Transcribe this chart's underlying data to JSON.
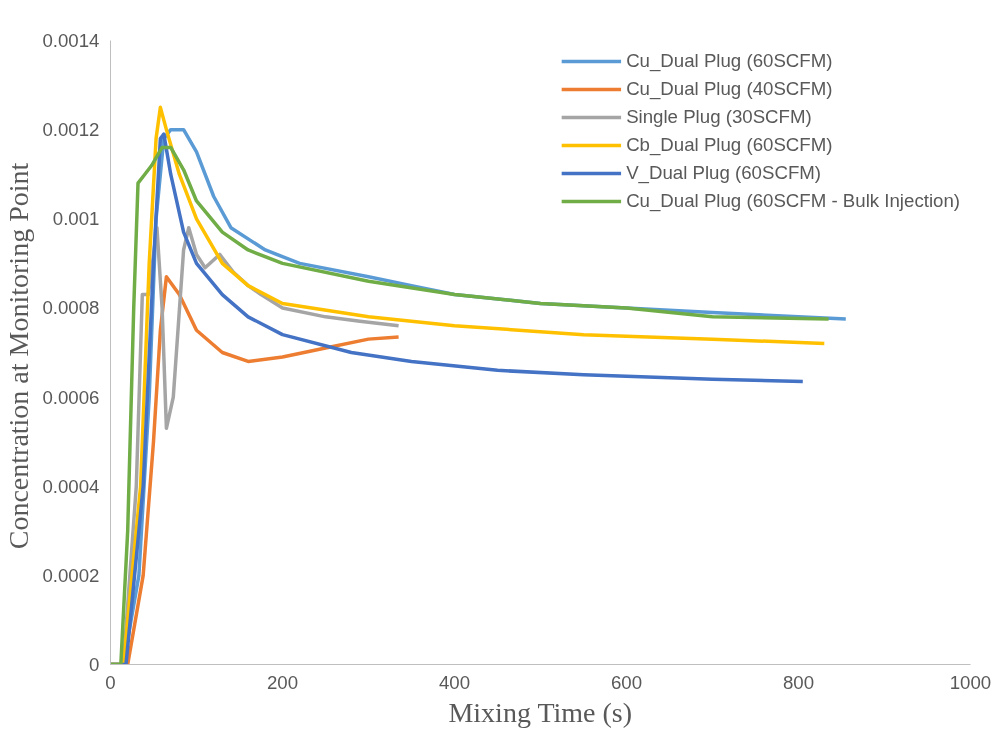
{
  "chart_data": {
    "type": "line",
    "xlabel": "Mixing Time (s)",
    "ylabel": "Concentration at  Monitoring Point",
    "xlim": [
      0,
      1000
    ],
    "xticks": [
      0,
      200,
      400,
      600,
      800,
      1000
    ],
    "ylim": [
      0,
      0.0014
    ],
    "yticks": [
      0,
      0.0002,
      0.0004,
      0.0006,
      0.0008,
      0.001,
      0.0012,
      0.0014
    ],
    "grid": false,
    "legend": "top right",
    "line_style": "solid",
    "marker": "none",
    "series": [
      {
        "name": "Cu_Dual Plug (60SCFM)",
        "color": "#5b9bd5",
        "x": [
          0,
          15,
          33,
          45,
          53,
          62,
          70,
          85,
          100,
          120,
          140,
          180,
          220,
          300,
          350,
          400,
          500,
          600,
          700,
          800,
          855
        ],
        "values": [
          0,
          0,
          0.0002,
          0.0006,
          0.001,
          0.00118,
          0.0012,
          0.0012,
          0.00115,
          0.00105,
          0.00098,
          0.00093,
          0.0009,
          0.00087,
          0.00085,
          0.00083,
          0.00081,
          0.0008,
          0.00079,
          0.00078,
          0.000775
        ]
      },
      {
        "name": "Cu_Dual Plug (40SCFM)",
        "color": "#ed7d31",
        "x": [
          0,
          20,
          38,
          50,
          58,
          65,
          80,
          100,
          130,
          160,
          200,
          250,
          300,
          335
        ],
        "values": [
          0,
          0,
          0.0002,
          0.0005,
          0.00075,
          0.00087,
          0.00083,
          0.00075,
          0.0007,
          0.00068,
          0.00069,
          0.00071,
          0.00073,
          0.000735
        ]
      },
      {
        "name": "Single Plug (30SCFM)",
        "color": "#a5a5a5",
        "x": [
          0,
          15,
          30,
          37,
          44,
          54,
          60,
          65,
          73,
          85,
          91,
          100,
          110,
          127,
          143,
          160,
          175,
          200,
          250,
          290,
          335
        ],
        "values": [
          0,
          0,
          0.0004,
          0.00083,
          0.00083,
          0.00098,
          0.0008,
          0.00053,
          0.0006,
          0.00093,
          0.00098,
          0.00092,
          0.00089,
          0.00092,
          0.00088,
          0.00085,
          0.00083,
          0.0008,
          0.00078,
          0.00077,
          0.00076
        ]
      },
      {
        "name": "Cb_Dual Plug (60SCFM)",
        "color": "#ffc000",
        "x": [
          0,
          15,
          35,
          45,
          53,
          58,
          65,
          80,
          100,
          130,
          160,
          200,
          300,
          400,
          550,
          700,
          830
        ],
        "values": [
          0,
          0,
          0.0004,
          0.0009,
          0.00118,
          0.00125,
          0.0012,
          0.0011,
          0.001,
          0.0009,
          0.00085,
          0.00081,
          0.00078,
          0.00076,
          0.00074,
          0.00073,
          0.00072
        ]
      },
      {
        "name": "V_Dual Plug (60SCFM)",
        "color": "#4472c4",
        "x": [
          0,
          18,
          38,
          50,
          58,
          62,
          70,
          85,
          100,
          130,
          160,
          200,
          280,
          350,
          450,
          550,
          700,
          805
        ],
        "values": [
          0,
          0,
          0.0004,
          0.0009,
          0.00118,
          0.00119,
          0.0011,
          0.00097,
          0.0009,
          0.00083,
          0.00078,
          0.00074,
          0.0007,
          0.00068,
          0.00066,
          0.00065,
          0.00064,
          0.000635
        ]
      },
      {
        "name": "Cu_Dual Plug (60SCFM - Bulk Injection)",
        "color": "#70ad47",
        "x": [
          0,
          12,
          20,
          27,
          32,
          40,
          48,
          60,
          70,
          85,
          100,
          130,
          160,
          200,
          300,
          400,
          500,
          600,
          700,
          835
        ],
        "values": [
          0,
          0,
          0.0003,
          0.0008,
          0.00108,
          0.0011,
          0.00112,
          0.00116,
          0.00116,
          0.00111,
          0.00104,
          0.00097,
          0.00093,
          0.0009,
          0.00086,
          0.00083,
          0.00081,
          0.0008,
          0.00078,
          0.000775
        ]
      }
    ]
  }
}
